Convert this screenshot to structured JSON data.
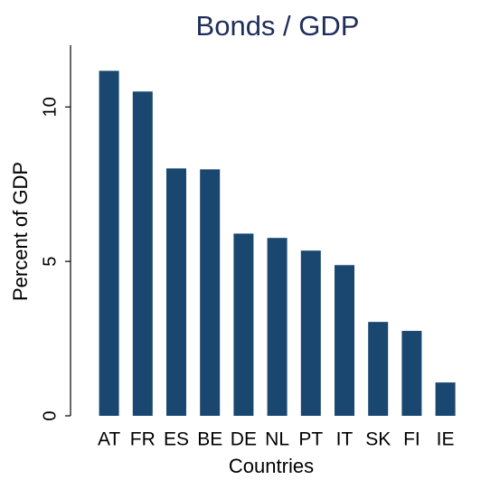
{
  "chart_data": {
    "type": "bar",
    "title": "Bonds / GDP",
    "x_label": "Countries",
    "y_label": "Percent of GDP",
    "categories": [
      "AT",
      "FR",
      "ES",
      "BE",
      "DE",
      "NL",
      "PT",
      "IT",
      "SK",
      "FI",
      "IE"
    ],
    "values": [
      11.17,
      10.5,
      8.01,
      7.98,
      5.9,
      5.76,
      5.35,
      4.88,
      3.04,
      2.75,
      1.08
    ],
    "color": "#1a476f",
    "ylim": [
      0,
      12
    ],
    "yticks": [
      0,
      5,
      10
    ],
    "grid": false
  }
}
